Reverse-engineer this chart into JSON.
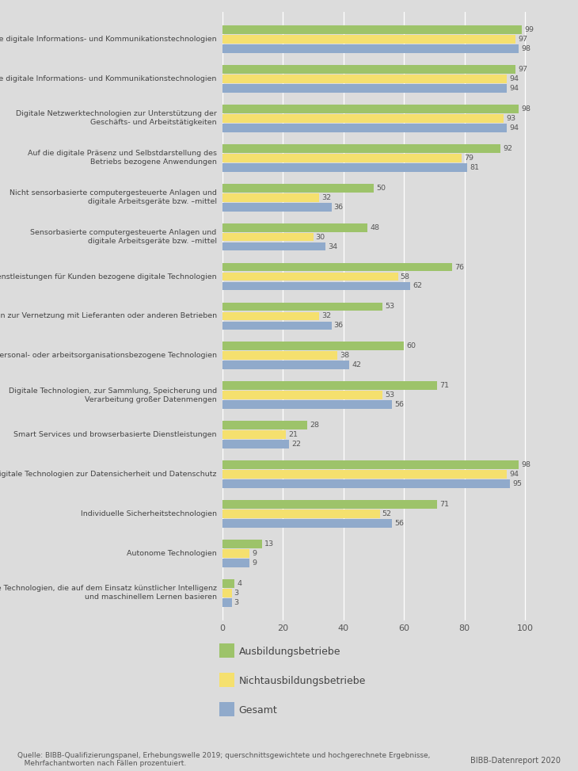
{
  "categories": [
    "Digitale Technologien, die auf dem Einsatz künstlicher Intelligenz\nund maschinellem Lernen basieren",
    "Autonome Technologien",
    "Individuelle Sicherheitstechnologien",
    "Einfache digitale Technologien zur Datensicherheit und Datenschutz",
    "Smart Services und browserbasierte Dienstleistungen",
    "Digitale Technologien, zur Sammlung, Speicherung und\nVerarbeitung großer Datenmengen",
    "Personal- oder arbeitsorganisationsbezogene Technologien",
    "Digitale Technologien zur Vernetzung mit Lieferanten oder anderen Betrieben",
    "Speziell auf Dienstleistungen für Kunden bezogene digitale Technologien",
    "Sensorbasierte computergesteuerte Anlagen und\ndigitale Arbeitsgeräte bzw. –mittel",
    "Nicht sensorbasierte computergesteuerte Anlagen und\ndigitale Arbeitsgeräte bzw. –mittel",
    "Auf die digitale Präsenz und Selbstdarstellung des\nBetriebs bezogene Anwendungen",
    "Digitale Netzwerktechnologien zur Unterstützung der\nGeschäfts- und Arbeitstätigkeiten",
    "Portable digitale Informations- und Kommunikationstechnologien",
    "Nicht portable digitale Informations- und Kommunikationstechnologien"
  ],
  "ausbildungsbetriebe": [
    4,
    13,
    71,
    98,
    28,
    71,
    60,
    53,
    76,
    48,
    50,
    92,
    98,
    97,
    99
  ],
  "nichtausbildungsbetriebe": [
    3,
    9,
    52,
    94,
    21,
    53,
    38,
    32,
    58,
    30,
    32,
    79,
    93,
    94,
    97
  ],
  "gesamt": [
    3,
    9,
    56,
    95,
    22,
    56,
    42,
    36,
    62,
    34,
    36,
    81,
    94,
    94,
    98
  ],
  "color_ausbildung": "#9dc36a",
  "color_nichtausbildung": "#f5e06e",
  "color_gesamt": "#90aacb",
  "background_color": "#dcdcdc",
  "source_text": "Quelle: BIBB-Qualifizierungspanel, Erhebungswelle 2019; querschnittsgewichtete und hochgerechnete Ergebnisse,\n   Mehrfachantworten nach Fällen prozentuiert.",
  "source_right": "BIBB-Datenreport 2020",
  "legend_labels": [
    "Ausbildungsbetriebe",
    "Nichtausbildungsbetriebe",
    "Gesamt"
  ],
  "bar_height": 0.24
}
